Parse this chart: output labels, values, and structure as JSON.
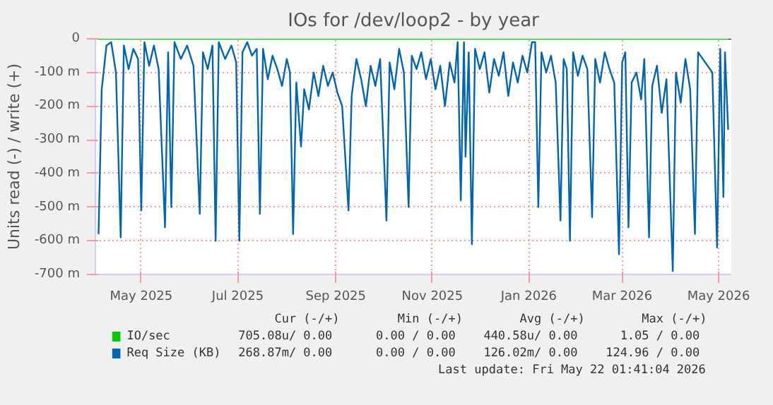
{
  "chart_data": {
    "type": "line",
    "title": "IOs for /dev/loop2 - by year",
    "ylabel": "Units read (-) / write (+)",
    "xlim": [
      "2025-04-02",
      "2026-05-09"
    ],
    "ylim": [
      -700,
      0
    ],
    "xticks": [
      {
        "value": "2025-05-01",
        "label": "May 2025"
      },
      {
        "value": "2025-07-01",
        "label": "Jul 2025"
      },
      {
        "value": "2025-09-01",
        "label": "Sep 2025"
      },
      {
        "value": "2025-11-01",
        "label": "Nov 2025"
      },
      {
        "value": "2026-01-01",
        "label": "Jan 2026"
      },
      {
        "value": "2026-03-01",
        "label": "Mar 2026"
      },
      {
        "value": "2026-05-01",
        "label": "May 2026"
      }
    ],
    "yticks": [
      0,
      {
        "value": -100,
        "label": "-100 m"
      },
      {
        "value": -200,
        "label": "-200 m"
      },
      {
        "value": -300,
        "label": "-300 m"
      },
      {
        "value": -400,
        "label": "-400 m"
      },
      {
        "value": -500,
        "label": "-500 m"
      },
      {
        "value": -600,
        "label": "-600 m"
      },
      {
        "value": -700,
        "label": "-700 m"
      }
    ],
    "grid": true,
    "legend": "bottom",
    "series": [
      {
        "name": "IO/sec",
        "color": "#00cc00",
        "x": [
          "2025-04-04",
          "2026-05-07"
        ],
        "values": [
          0,
          0
        ]
      },
      {
        "name": "Req Size (KB)",
        "color": "#0066b3",
        "x": [
          "2025-04-04",
          "2025-04-06",
          "2025-04-09",
          "2025-04-12",
          "2025-04-15",
          "2025-04-18",
          "2025-04-20",
          "2025-04-23",
          "2025-04-26",
          "2025-04-29",
          "2025-05-01",
          "2025-05-03",
          "2025-05-06",
          "2025-05-09",
          "2025-05-12",
          "2025-05-16",
          "2025-05-18",
          "2025-05-20",
          "2025-05-22",
          "2025-05-26",
          "2025-05-30",
          "2025-06-03",
          "2025-06-07",
          "2025-06-09",
          "2025-06-12",
          "2025-06-15",
          "2025-06-17",
          "2025-06-19",
          "2025-06-23",
          "2025-06-27",
          "2025-06-30",
          "2025-07-02",
          "2025-07-04",
          "2025-07-07",
          "2025-07-10",
          "2025-07-13",
          "2025-07-15",
          "2025-07-17",
          "2025-07-20",
          "2025-07-23",
          "2025-07-26",
          "2025-07-29",
          "2025-08-01",
          "2025-08-03",
          "2025-08-05",
          "2025-08-07",
          "2025-08-10",
          "2025-08-12",
          "2025-08-15",
          "2025-08-18",
          "2025-08-21",
          "2025-08-24",
          "2025-08-27",
          "2025-08-30",
          "2025-09-02",
          "2025-09-05",
          "2025-09-09",
          "2025-09-11",
          "2025-09-14",
          "2025-09-17",
          "2025-09-20",
          "2025-09-23",
          "2025-09-26",
          "2025-09-29",
          "2025-10-03",
          "2025-10-05",
          "2025-10-08",
          "2025-10-11",
          "2025-10-14",
          "2025-10-17",
          "2025-10-19",
          "2025-10-22",
          "2025-10-25",
          "2025-10-28",
          "2025-10-31",
          "2025-11-03",
          "2025-11-06",
          "2025-11-09",
          "2025-11-12",
          "2025-11-15",
          "2025-11-17",
          "2025-11-19",
          "2025-11-21",
          "2025-11-22",
          "2025-11-24",
          "2025-11-26",
          "2025-11-28",
          "2025-12-01",
          "2025-12-04",
          "2025-12-07",
          "2025-12-10",
          "2025-12-13",
          "2025-12-16",
          "2025-12-19",
          "2025-12-22",
          "2025-12-25",
          "2025-12-28",
          "2025-12-31",
          "2026-01-03",
          "2026-01-05",
          "2026-01-07",
          "2026-01-09",
          "2026-01-12",
          "2026-01-15",
          "2026-01-18",
          "2026-01-21",
          "2026-01-23",
          "2026-01-25",
          "2026-01-27",
          "2026-01-29",
          "2026-02-01",
          "2026-02-04",
          "2026-02-07",
          "2026-02-10",
          "2026-02-12",
          "2026-02-15",
          "2026-02-18",
          "2026-02-21",
          "2026-02-24",
          "2026-02-27",
          "2026-03-01",
          "2026-03-03",
          "2026-03-05",
          "2026-03-07",
          "2026-03-10",
          "2026-03-13",
          "2026-03-15",
          "2026-03-18",
          "2026-03-20",
          "2026-03-23",
          "2026-03-26",
          "2026-03-29",
          "2026-04-02",
          "2026-04-04",
          "2026-04-07",
          "2026-04-10",
          "2026-04-13",
          "2026-04-16",
          "2026-04-18",
          "2026-04-21",
          "2026-04-24",
          "2026-04-27",
          "2026-04-30",
          "2026-05-02",
          "2026-05-04",
          "2026-05-05",
          "2026-05-07"
        ],
        "values": [
          -580,
          -150,
          -20,
          -10,
          -100,
          -590,
          -20,
          -90,
          -30,
          -60,
          -510,
          -10,
          -80,
          -20,
          -90,
          -560,
          -40,
          -500,
          -10,
          -60,
          -20,
          -80,
          -520,
          -40,
          -90,
          -20,
          -600,
          -10,
          -60,
          -20,
          -70,
          -600,
          -40,
          -10,
          -50,
          -30,
          -520,
          -30,
          -120,
          -50,
          -90,
          -140,
          -60,
          -100,
          -580,
          -130,
          -320,
          -150,
          -210,
          -100,
          -170,
          -80,
          -140,
          -100,
          -160,
          -200,
          -510,
          -170,
          -60,
          -120,
          -200,
          -80,
          -140,
          -60,
          -540,
          -70,
          -150,
          -30,
          -100,
          -500,
          -50,
          -90,
          -40,
          -120,
          -60,
          -150,
          -80,
          -200,
          -70,
          -130,
          -10,
          -480,
          -10,
          -350,
          -40,
          -610,
          -30,
          -90,
          -40,
          -160,
          -60,
          -110,
          -40,
          -170,
          -70,
          -130,
          -50,
          -100,
          -10,
          -10,
          -500,
          -40,
          -100,
          -50,
          -130,
          -540,
          -60,
          -90,
          -600,
          -40,
          -110,
          -50,
          -90,
          -530,
          -60,
          -130,
          -40,
          -90,
          -130,
          -640,
          -70,
          -40,
          -560,
          -130,
          -100,
          -180,
          -60,
          -590,
          -140,
          -80,
          -220,
          -120,
          -690,
          -100,
          -190,
          -60,
          -150,
          -580,
          -40,
          -60,
          -80,
          -100,
          -620,
          -30,
          -470,
          -40,
          -270
        ]
      }
    ],
    "annotations": [
      "Cur (-/+)",
      "Min (-/+)",
      "Avg (-/+)",
      "Max (-/+)",
      "705.08u/  0.00",
      "0.00 /  0.00",
      "440.58u/  0.00",
      "1.05 /  0.00",
      "268.87m/  0.00",
      "0.00 /  0.00",
      "126.02m/  0.00",
      "124.96 /  0.00",
      "Last update: Fri May 22 01:41:04 2026"
    ]
  }
}
